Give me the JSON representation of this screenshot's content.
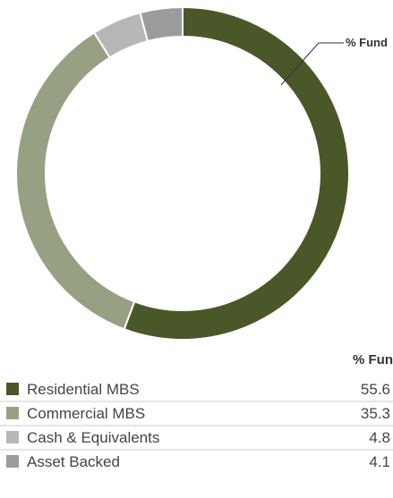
{
  "chart_data": {
    "type": "pie",
    "variant": "donut",
    "callout_label": "% Fund",
    "table_header": "% Fund",
    "segments": [
      {
        "label": "Residential MBS",
        "value": 55.6,
        "display_value": "55.6",
        "color": "#4a5728"
      },
      {
        "label": "Commercial MBS",
        "value": 35.3,
        "display_value": "35.3",
        "color": "#98a083"
      },
      {
        "label": "Cash & Equivalents",
        "value": 4.8,
        "display_value": "4.8",
        "color": "#b7b7b7"
      },
      {
        "label": "Asset Backed",
        "value": 4.1,
        "display_value": "4.1",
        "color": "#9c9c9c"
      }
    ]
  }
}
